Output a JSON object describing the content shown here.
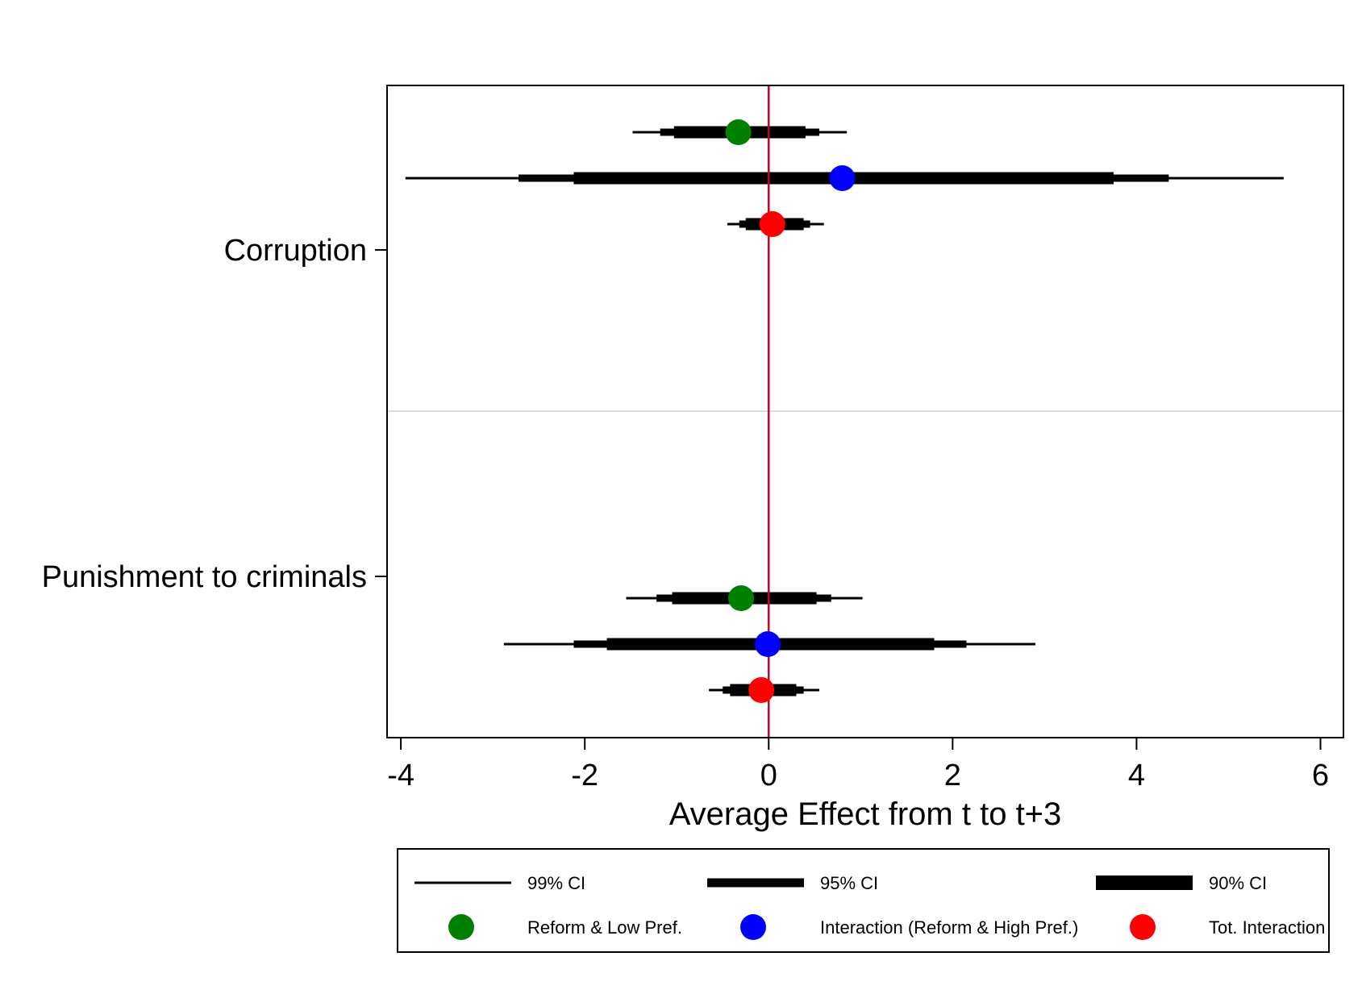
{
  "chart_data": {
    "type": "coefficient-plot",
    "title": "",
    "xlabel": "Average Effect from t to t+3",
    "ylabel": "",
    "xlim": [
      -4.15,
      6.25
    ],
    "xticks": [
      "-4",
      "-2",
      "0",
      "2",
      "4",
      "6"
    ],
    "xtick_values": [
      -4,
      -2,
      0,
      2,
      4,
      6
    ],
    "reference_line": {
      "x": 0,
      "color": "#cc0022"
    },
    "grid": "horizontal separator between groups",
    "legend_position": "bottom",
    "groups": [
      {
        "label": "Corruption",
        "estimates": [
          {
            "series": "Reform & Low Pref.",
            "color": "#008000",
            "value": -0.33,
            "ci99": [
              -1.48,
              0.85
            ],
            "ci95": [
              -1.18,
              0.55
            ],
            "ci90": [
              -1.03,
              0.4
            ]
          },
          {
            "series": "Interaction (Reform & High Pref.)",
            "color": "#0000ff",
            "value": 0.8,
            "ci99": [
              -3.95,
              5.6
            ],
            "ci95": [
              -2.72,
              4.35
            ],
            "ci90": [
              -2.12,
              3.75
            ]
          },
          {
            "series": "Tot. Interaction",
            "color": "#ff0000",
            "value": 0.04,
            "ci99": [
              -0.45,
              0.6
            ],
            "ci95": [
              -0.32,
              0.45
            ],
            "ci90": [
              -0.25,
              0.38
            ]
          }
        ]
      },
      {
        "label": "Punishment to criminals",
        "estimates": [
          {
            "series": "Reform & Low Pref.",
            "color": "#008000",
            "value": -0.3,
            "ci99": [
              -1.55,
              1.02
            ],
            "ci95": [
              -1.22,
              0.68
            ],
            "ci90": [
              -1.05,
              0.52
            ]
          },
          {
            "series": "Interaction (Reform & High Pref.)",
            "color": "#0000ff",
            "value": -0.01,
            "ci99": [
              -2.88,
              2.9
            ],
            "ci95": [
              -2.12,
              2.15
            ],
            "ci90": [
              -1.76,
              1.8
            ]
          },
          {
            "series": "Tot. Interaction",
            "color": "#ff0000",
            "value": -0.08,
            "ci99": [
              -0.65,
              0.55
            ],
            "ci95": [
              -0.5,
              0.38
            ],
            "ci90": [
              -0.42,
              0.3
            ]
          }
        ]
      }
    ],
    "legend": {
      "line_entries": [
        "99% CI",
        "95% CI",
        "90% CI"
      ],
      "marker_entries": [
        {
          "label": "Reform & Low Pref.",
          "color": "#008000"
        },
        {
          "label": "Interaction (Reform & High Pref.)",
          "color": "#0000ff"
        },
        {
          "label": "Tot. Interaction",
          "color": "#ff0000"
        }
      ]
    }
  }
}
